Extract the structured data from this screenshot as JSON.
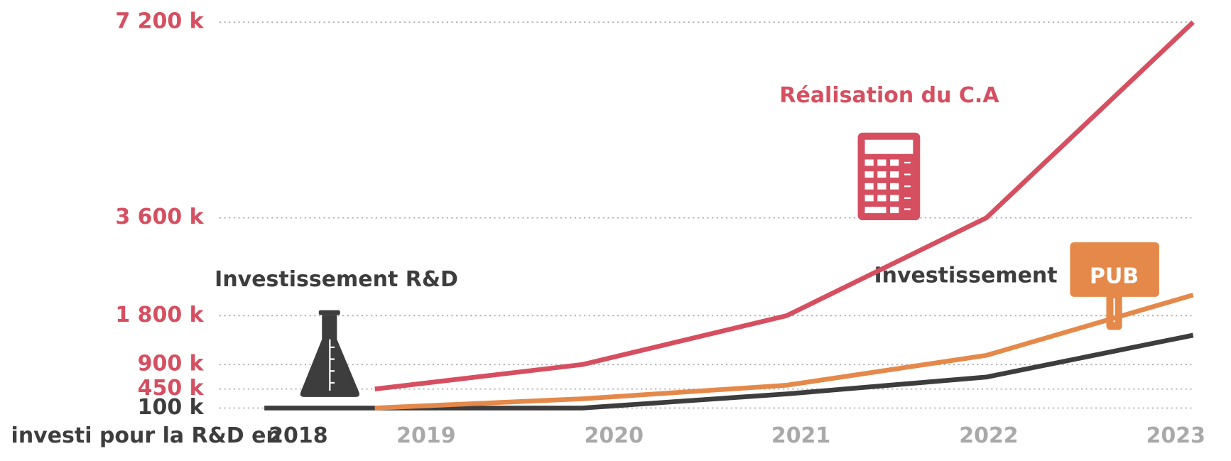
{
  "chart_data": {
    "type": "line",
    "categories": [
      "2018",
      "2019",
      "2020",
      "2021",
      "2022",
      "2023"
    ],
    "series": [
      {
        "name": "Investissement R&D",
        "color": "#3d3d3d",
        "values": [
          100,
          100,
          100,
          360,
          670,
          1440
        ]
      },
      {
        "name": "Investissement PUB",
        "color": "#e5894a",
        "values": [
          null,
          100,
          270,
          520,
          1070,
          2180
        ]
      },
      {
        "name": "Réalisation du C.A",
        "color": "#d64f61",
        "values": [
          null,
          450,
          900,
          1800,
          3600,
          7200
        ]
      }
    ],
    "ylim": [
      100,
      7200
    ],
    "yticks": [
      {
        "value": 100,
        "label": "100 k"
      },
      {
        "value": 450,
        "label": "450 k"
      },
      {
        "value": 900,
        "label": "900 k"
      },
      {
        "value": 1800,
        "label": "1 800 k"
      },
      {
        "value": 3600,
        "label": "3 600 k"
      },
      {
        "value": 7200,
        "label": "7 200 k"
      }
    ],
    "annotations": [
      "Réalisation du C.A",
      "Investissement R&D",
      "Investissement",
      "PUB",
      "investi pour la R&D en"
    ],
    "grid": true
  }
}
